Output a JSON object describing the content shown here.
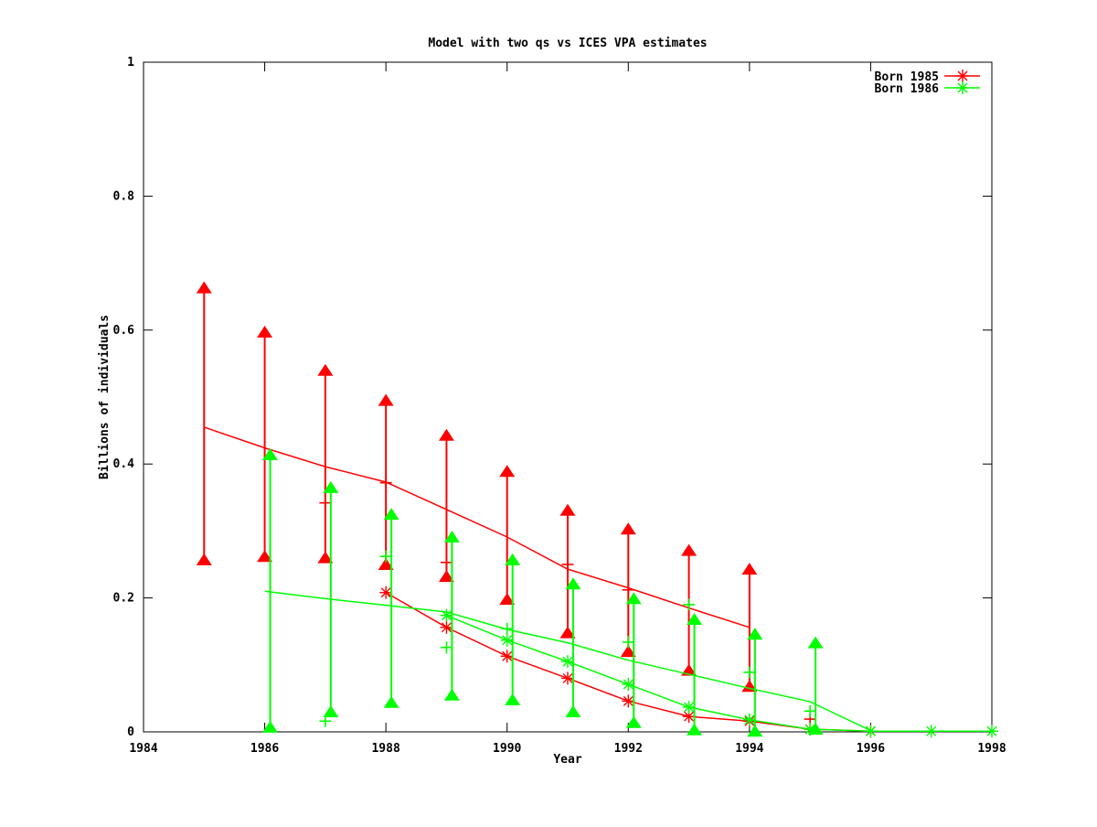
{
  "title": "Model with two qs vs ICES VPA estimates",
  "axes": {
    "xlabel": "Year",
    "ylabel": "Billions of individuals"
  },
  "legend": {
    "position": "top-right-inside",
    "items": [
      {
        "label": "Born 1985",
        "color": "#ff0000",
        "marker": "asterisk"
      },
      {
        "label": "Born 1986",
        "color": "#00ff00",
        "marker": "asterisk"
      }
    ]
  },
  "colors": {
    "born1985": "#ff0000",
    "born1986": "#00ff00",
    "axis": "#000000",
    "background": "#ffffff"
  },
  "chart_data": {
    "type": "line",
    "title": "Model with two qs vs ICES VPA estimates",
    "xlabel": "Year",
    "ylabel": "Billions of individuals",
    "xlim": [
      1984,
      1998
    ],
    "ylim": [
      0,
      1
    ],
    "grid": false,
    "xticks": {
      "values": [
        1984,
        1986,
        1988,
        1990,
        1992,
        1994,
        1996,
        1998
      ],
      "labels": [
        "1984",
        "1986",
        "1988",
        "1990",
        "1992",
        "1994",
        "1996",
        "1998"
      ]
    },
    "yticks": {
      "values": [
        0,
        0.2,
        0.4,
        0.6,
        0.8,
        1
      ],
      "labels": [
        "0",
        "0.2",
        "0.4",
        "0.6",
        "0.8",
        "1"
      ]
    },
    "series": [
      {
        "name": "born-1985-model-line",
        "color": "#ff0000",
        "style": "line",
        "marker": "none",
        "points": [
          [
            1985,
            0.455
          ],
          [
            1986,
            0.424
          ],
          [
            1987,
            0.396
          ],
          [
            1988,
            0.373
          ],
          [
            1989,
            0.332
          ],
          [
            1990,
            0.291
          ],
          [
            1991,
            0.243
          ],
          [
            1992,
            0.215
          ],
          [
            1993,
            0.185
          ],
          [
            1994,
            0.156
          ]
        ]
      },
      {
        "name": "born-1985-estimate-line",
        "color": "#ff0000",
        "style": "line",
        "marker": "asterisk",
        "points": [
          [
            1988,
            0.208
          ],
          [
            1989,
            0.156
          ],
          [
            1990,
            0.113
          ],
          [
            1991,
            0.08
          ],
          [
            1992,
            0.046
          ],
          [
            1993,
            0.023
          ],
          [
            1994,
            0.016
          ],
          [
            1995,
            0.004
          ],
          [
            1996,
            0.001
          ]
        ]
      },
      {
        "name": "born-1985-vpa-range-bars",
        "color": "#ff0000",
        "style": "rangebar",
        "marker": "triangle-up",
        "x_offset": 0,
        "bars": [
          [
            1985,
            0.257,
            0.663
          ],
          [
            1986,
            0.262,
            0.597
          ],
          [
            1987,
            0.26,
            0.54
          ],
          [
            1988,
            0.25,
            0.495
          ],
          [
            1989,
            0.232,
            0.443
          ],
          [
            1990,
            0.198,
            0.389
          ],
          [
            1991,
            0.148,
            0.331
          ],
          [
            1992,
            0.12,
            0.303
          ],
          [
            1993,
            0.092,
            0.271
          ],
          [
            1994,
            0.068,
            0.243
          ]
        ]
      },
      {
        "name": "born-1985-vpa-points",
        "color": "#ff0000",
        "style": "scatter",
        "marker": "plus",
        "points": [
          [
            1987,
            0.342
          ],
          [
            1988,
            0.372
          ],
          [
            1989,
            0.253
          ],
          [
            1991,
            0.25
          ],
          [
            1992,
            0.212
          ],
          [
            1995,
            0.019
          ]
        ]
      },
      {
        "name": "born-1986-model-line",
        "color": "#00ff00",
        "style": "line",
        "marker": "none",
        "points": [
          [
            1986,
            0.21
          ],
          [
            1987,
            0.199
          ],
          [
            1988,
            0.189
          ],
          [
            1989,
            0.179
          ],
          [
            1990,
            0.153
          ],
          [
            1991,
            0.133
          ],
          [
            1992,
            0.107
          ],
          [
            1993,
            0.086
          ],
          [
            1994,
            0.065
          ],
          [
            1995,
            0.045
          ],
          [
            1996,
            0.002
          ]
        ]
      },
      {
        "name": "born-1986-estimate-line",
        "color": "#00ff00",
        "style": "line",
        "marker": "asterisk",
        "points": [
          [
            1989,
            0.174
          ],
          [
            1990,
            0.137
          ],
          [
            1991,
            0.105
          ],
          [
            1992,
            0.071
          ],
          [
            1993,
            0.037
          ],
          [
            1994,
            0.018
          ],
          [
            1995,
            0.004
          ],
          [
            1996,
            0.001
          ],
          [
            1997,
            0.001
          ],
          [
            1998,
            0.001
          ]
        ]
      },
      {
        "name": "born-1986-vpa-range-bars",
        "color": "#00ff00",
        "style": "rangebar",
        "marker": "triangle-up",
        "x_offset": 0.09,
        "bars": [
          [
            1986,
            0.007,
            0.414
          ],
          [
            1987,
            0.03,
            0.365
          ],
          [
            1988,
            0.044,
            0.325
          ],
          [
            1989,
            0.055,
            0.291
          ],
          [
            1990,
            0.048,
            0.257
          ],
          [
            1991,
            0.03,
            0.221
          ],
          [
            1992,
            0.014,
            0.199
          ],
          [
            1993,
            0.003,
            0.168
          ],
          [
            1994,
            0.001,
            0.146
          ],
          [
            1995,
            0.004,
            0.133
          ]
        ]
      },
      {
        "name": "born-1986-vpa-points",
        "color": "#00ff00",
        "style": "scatter",
        "marker": "plus",
        "points": [
          [
            1987,
            0.016
          ],
          [
            1988,
            0.262
          ],
          [
            1989,
            0.126
          ],
          [
            1990,
            0.154
          ],
          [
            1992,
            0.134
          ],
          [
            1993,
            0.19
          ],
          [
            1994,
            0.089
          ],
          [
            1995,
            0.031
          ]
        ]
      }
    ]
  }
}
